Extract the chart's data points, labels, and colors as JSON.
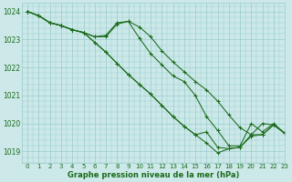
{
  "bg_color": "#cce8e8",
  "grid_color": "#99cccc",
  "line_color": "#1a6b1a",
  "xlabel": "Graphe pression niveau de la mer (hPa)",
  "xlabel_color": "#1a6b1a",
  "ylim": [
    1018.6,
    1024.3
  ],
  "xlim": [
    -0.5,
    23
  ],
  "yticks": [
    1019,
    1020,
    1021,
    1022,
    1023,
    1024
  ],
  "xticks": [
    0,
    1,
    2,
    3,
    4,
    5,
    6,
    7,
    8,
    9,
    10,
    11,
    12,
    13,
    14,
    15,
    16,
    17,
    18,
    19,
    20,
    21,
    22,
    23
  ],
  "series": [
    [
      1024.0,
      1023.85,
      1023.6,
      1023.5,
      1023.35,
      1023.25,
      1023.1,
      1023.1,
      1023.55,
      1023.65,
      1023.45,
      1023.1,
      1022.6,
      1022.2,
      1021.85,
      1021.5,
      1021.2,
      1020.8,
      1020.3,
      1019.85,
      1019.6,
      1020.0,
      1019.95,
      1019.65
    ],
    [
      1024.0,
      1023.85,
      1023.6,
      1023.5,
      1023.35,
      1023.25,
      1023.1,
      1023.15,
      1023.6,
      1023.65,
      1023.05,
      1022.5,
      1022.1,
      1021.7,
      1021.5,
      1021.0,
      1020.25,
      1019.75,
      1019.2,
      1019.2,
      1020.0,
      1019.7,
      1020.0,
      1019.65
    ],
    [
      1024.0,
      1023.85,
      1023.6,
      1023.5,
      1023.35,
      1023.25,
      1022.9,
      1022.55,
      1022.15,
      1021.75,
      1021.4,
      1021.05,
      1020.65,
      1020.25,
      1019.9,
      1019.6,
      1019.7,
      1019.15,
      1019.1,
      1019.15,
      1019.6,
      1019.6,
      1019.95,
      1019.65
    ],
    [
      1024.0,
      1023.85,
      1023.6,
      1023.5,
      1023.35,
      1023.25,
      1022.9,
      1022.55,
      1022.15,
      1021.75,
      1021.4,
      1021.05,
      1020.65,
      1020.25,
      1019.9,
      1019.6,
      1019.3,
      1018.95,
      1019.1,
      1019.15,
      1019.55,
      1019.6,
      1019.95,
      1019.65
    ]
  ]
}
